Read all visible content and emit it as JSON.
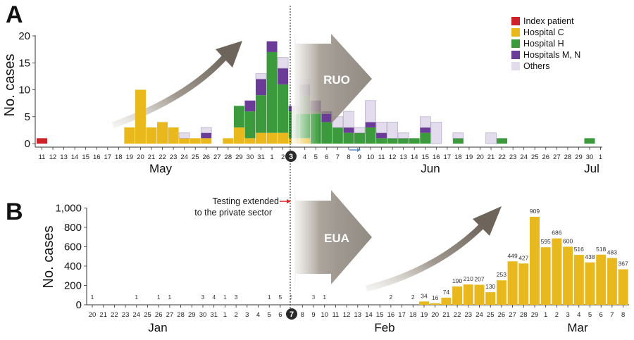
{
  "colors": {
    "index": "#cc2229",
    "hospital_c": "#e9b81d",
    "hospital_h": "#3a9a3c",
    "hospitals_mn": "#6a3c97",
    "others": "#e3dcec",
    "gold": "#e9b81d"
  },
  "panel_a": {
    "label": "A",
    "ylabel": "No. cases",
    "yticks": [
      "0",
      "5",
      "10",
      "15",
      "20"
    ],
    "months": [
      "May",
      "Jun",
      "Jul"
    ],
    "arrow_label": "RUO",
    "marker": "3",
    "legend": [
      "Index patient",
      "Hospital C",
      "Hospital H",
      "Hospitals M, N",
      "Others"
    ]
  },
  "panel_b": {
    "label": "B",
    "ylabel": "No. cases",
    "yticks": [
      "0",
      "200",
      "400",
      "600",
      "800",
      "1,000"
    ],
    "months": [
      "Jan",
      "Feb",
      "Mar"
    ],
    "arrow_label": "EUA",
    "marker": "7",
    "annotation_line1": "Testing extended",
    "annotation_line2": "to the private sector"
  },
  "chart_data": [
    {
      "type": "bar",
      "stacked": true,
      "ylabel": "No. cases",
      "ylim": [
        0,
        20
      ],
      "x": [
        "11",
        "12",
        "13",
        "14",
        "15",
        "16",
        "17",
        "18",
        "19",
        "20",
        "21",
        "22",
        "23",
        "24",
        "25",
        "26",
        "27",
        "28",
        "29",
        "30",
        "31",
        "1",
        "2",
        "3",
        "4",
        "5",
        "6",
        "7",
        "8",
        "9",
        "10",
        "11",
        "12",
        "13",
        "14",
        "15",
        "16",
        "17",
        "18",
        "19",
        "20",
        "21",
        "22",
        "23",
        "24",
        "25",
        "26",
        "27",
        "28",
        "29",
        "30",
        "1"
      ],
      "series": [
        {
          "name": "Index patient",
          "values": [
            1,
            0,
            0,
            0,
            0,
            0,
            0,
            0,
            0,
            0,
            0,
            0,
            0,
            0,
            0,
            0,
            0,
            0,
            0,
            0,
            0,
            0,
            0,
            0,
            0,
            0,
            0,
            0,
            0,
            0,
            0,
            0,
            0,
            0,
            0,
            0,
            0,
            0,
            0,
            0,
            0,
            0,
            0,
            0,
            0,
            0,
            0,
            0,
            0,
            0,
            0,
            0
          ]
        },
        {
          "name": "Hospital C",
          "values": [
            0,
            0,
            0,
            0,
            0,
            0,
            0,
            0,
            3,
            10,
            3,
            4,
            3,
            1,
            1,
            1,
            0,
            1,
            3,
            1,
            2,
            2,
            2,
            1,
            1,
            0,
            0,
            0,
            0,
            0,
            0,
            0,
            0,
            0,
            0,
            0,
            0,
            0,
            0,
            0,
            0,
            0,
            0,
            0,
            0,
            0,
            0,
            0,
            0,
            0,
            0,
            0
          ]
        },
        {
          "name": "Hospital H",
          "values": [
            0,
            0,
            0,
            0,
            0,
            0,
            0,
            0,
            0,
            0,
            0,
            0,
            0,
            0,
            0,
            0,
            0,
            0,
            4,
            5,
            7,
            15,
            9,
            5,
            8,
            6,
            4,
            3,
            2,
            2,
            3,
            1,
            1,
            1,
            1,
            2,
            0,
            0,
            1,
            0,
            0,
            0,
            1,
            0,
            0,
            0,
            0,
            0,
            0,
            0,
            1,
            0
          ]
        },
        {
          "name": "Hospitals M, N",
          "values": [
            0,
            0,
            0,
            0,
            0,
            0,
            0,
            0,
            0,
            0,
            0,
            0,
            0,
            0,
            0,
            1,
            0,
            0,
            0,
            2,
            3,
            2,
            3,
            1,
            2,
            2,
            2,
            0,
            1,
            0,
            1,
            1,
            0,
            0,
            0,
            1,
            0,
            0,
            0,
            0,
            0,
            0,
            0,
            0,
            0,
            0,
            0,
            0,
            0,
            0,
            0,
            0
          ]
        },
        {
          "name": "Others",
          "values": [
            0,
            0,
            0,
            0,
            0,
            0,
            0,
            0,
            0,
            0,
            0,
            0,
            0,
            1,
            0,
            1,
            0,
            0,
            0,
            0,
            1,
            0,
            2,
            0,
            1,
            0,
            0,
            2,
            3,
            1,
            4,
            2,
            3,
            1,
            0,
            2,
            4,
            0,
            1,
            0,
            0,
            2,
            0,
            0,
            0,
            0,
            0,
            0,
            0,
            0,
            0,
            0
          ]
        }
      ]
    },
    {
      "type": "bar",
      "ylabel": "No. cases",
      "ylim": [
        0,
        1000
      ],
      "x": [
        "20",
        "21",
        "22",
        "23",
        "24",
        "25",
        "26",
        "27",
        "28",
        "29",
        "30",
        "31",
        "1",
        "2",
        "3",
        "4",
        "5",
        "6",
        "7",
        "8",
        "9",
        "10",
        "11",
        "12",
        "13",
        "14",
        "15",
        "16",
        "17",
        "18",
        "19",
        "20",
        "21",
        "22",
        "23",
        "24",
        "25",
        "26",
        "27",
        "28",
        "29",
        "1",
        "2",
        "3",
        "4",
        "5",
        "6",
        "7",
        "8"
      ],
      "values": [
        1,
        0,
        0,
        0,
        1,
        0,
        1,
        1,
        0,
        0,
        3,
        4,
        1,
        3,
        0,
        0,
        1,
        5,
        3,
        0,
        3,
        1,
        0,
        0,
        0,
        0,
        0,
        2,
        0,
        2,
        34,
        16,
        74,
        190,
        210,
        207,
        130,
        253,
        449,
        427,
        909,
        595,
        686,
        600,
        516,
        438,
        518,
        483,
        367
      ],
      "value_labels": [
        "1",
        "",
        "",
        "",
        "1",
        "",
        "1",
        "1",
        "",
        "",
        "3",
        "4",
        "1",
        "3",
        "",
        "",
        "1",
        "5",
        "3",
        "",
        "3",
        "1",
        "",
        "",
        "",
        "",
        "",
        "2",
        "",
        "2",
        "34",
        "16",
        "74",
        "190",
        "210",
        "207",
        "130",
        "253",
        "449",
        "427",
        "909",
        "595",
        "686",
        "600",
        "516",
        "438",
        "518",
        "483",
        "367"
      ]
    }
  ]
}
